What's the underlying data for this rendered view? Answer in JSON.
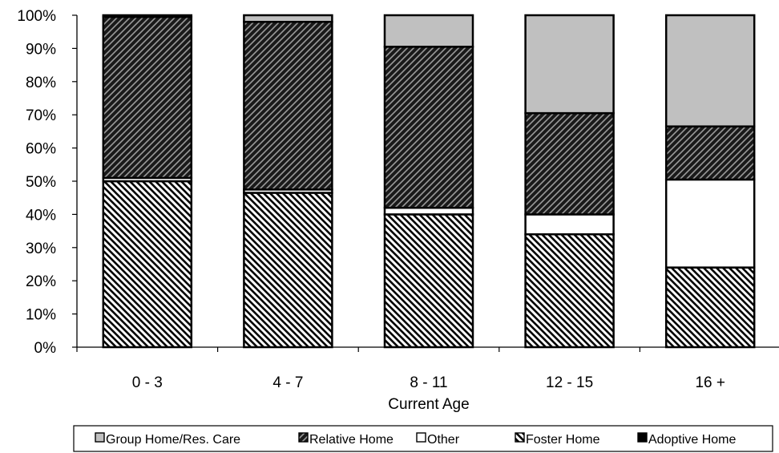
{
  "chart_data": {
    "type": "bar",
    "stacked": true,
    "percent": true,
    "xlabel": "Current Age",
    "ylabel": "",
    "ylim": [
      0,
      100
    ],
    "yticks": [
      "0%",
      "10%",
      "20%",
      "30%",
      "40%",
      "50%",
      "60%",
      "70%",
      "80%",
      "90%",
      "100%"
    ],
    "categories": [
      "0 - 3",
      "4 - 7",
      "8 - 11",
      "12 - 15",
      "16 +"
    ],
    "series": [
      {
        "name": "Adoptive Home",
        "values": [
          0,
          0,
          0,
          0,
          0
        ],
        "color": "#000000",
        "pattern": "solid"
      },
      {
        "name": "Foster Home",
        "values": [
          50,
          46.5,
          40,
          34,
          24
        ],
        "color": "#3a3a3a",
        "pattern": "diagonal-down"
      },
      {
        "name": "Other",
        "values": [
          1,
          1,
          2,
          6,
          26.5
        ],
        "color": "#ffffff",
        "pattern": "solid"
      },
      {
        "name": "Relative Home",
        "values": [
          48.5,
          50.5,
          48.5,
          30.5,
          16
        ],
        "color": "#1a1a1a",
        "pattern": "diagonal-up"
      },
      {
        "name": "Group Home/Res. Care",
        "values": [
          0.5,
          2,
          9.5,
          29.5,
          33.5
        ],
        "color": "#c0c0c0",
        "pattern": "solid"
      }
    ],
    "legend": {
      "position": "bottom",
      "order": [
        "Group Home/Res. Care",
        "Relative Home",
        "Other",
        "Foster Home",
        "Adoptive Home"
      ]
    },
    "grid": false
  }
}
